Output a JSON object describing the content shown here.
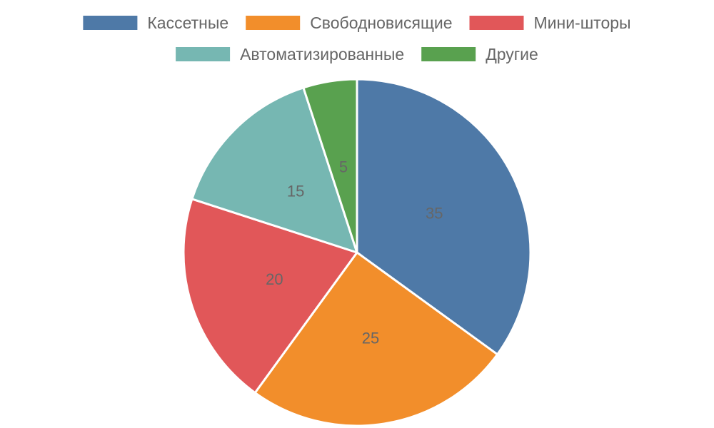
{
  "chart_data": {
    "type": "pie",
    "categories": [
      "Кассетные",
      "Свободновисящие",
      "Мини-шторы",
      "Автоматизированные",
      "Другие"
    ],
    "values": [
      35,
      25,
      20,
      15,
      5
    ],
    "colors": [
      "#4e79a7",
      "#f28e2b",
      "#e15759",
      "#76b7b2",
      "#59a14f"
    ],
    "data_labels": [
      "35",
      "25",
      "20",
      "15",
      "5"
    ],
    "legend_position": "top",
    "start_angle_deg": 0,
    "direction": "clockwise"
  }
}
